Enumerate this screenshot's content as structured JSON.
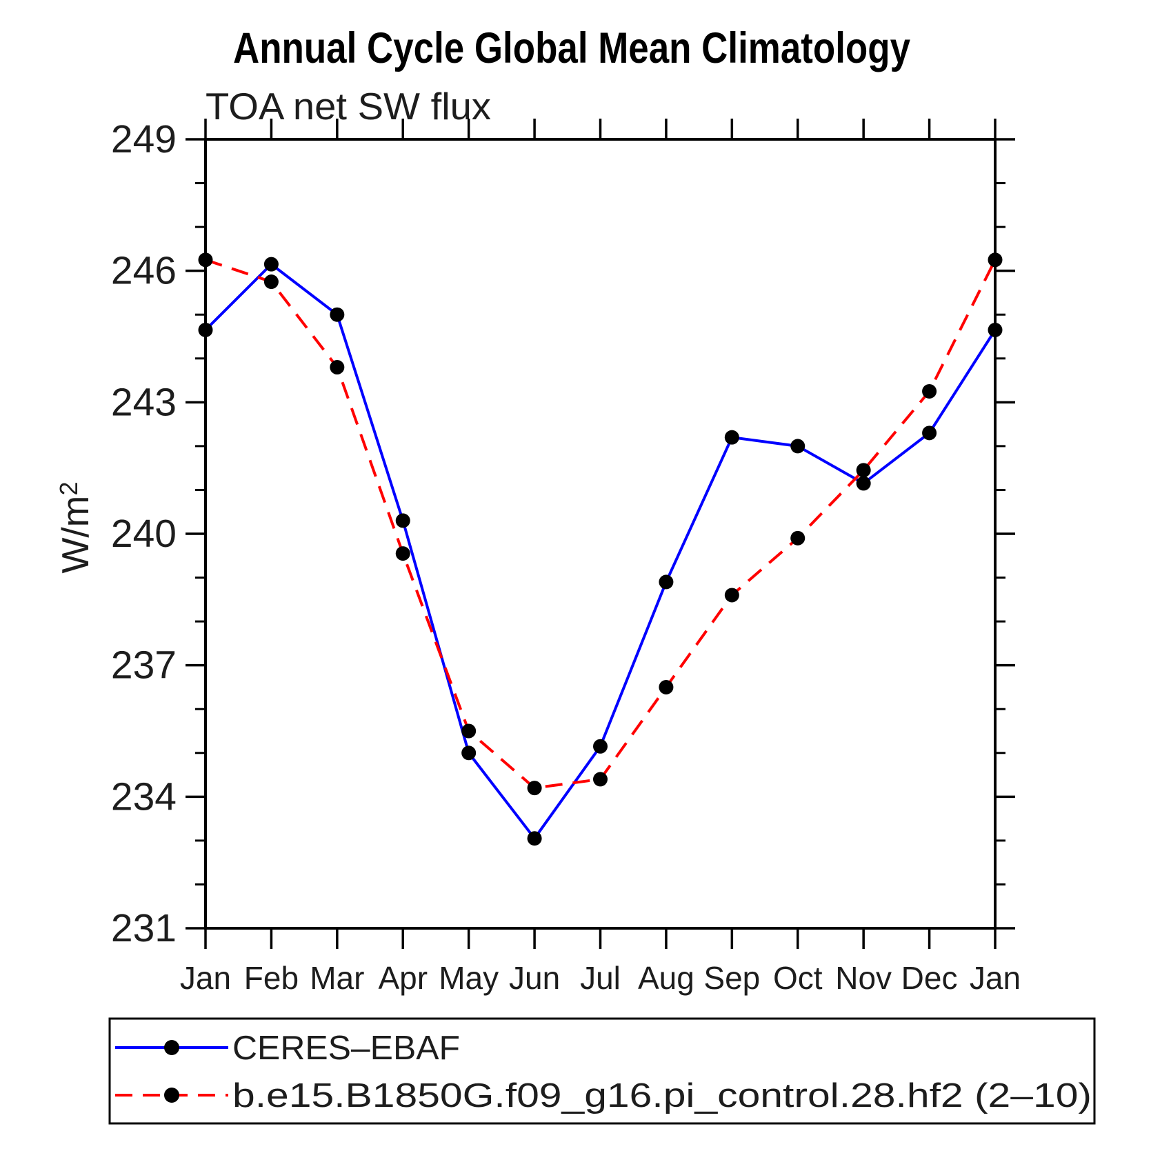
{
  "title": "Annual Cycle Global Mean Climatology",
  "subtitle": "TOA net SW flux",
  "ylabel": {
    "main": "W/m",
    "sup": "2"
  },
  "chart_data": {
    "type": "line",
    "title": "Annual Cycle Global Mean Climatology",
    "subtitle": "TOA net SW flux",
    "ylabel": "W/m2",
    "x_categories": [
      "Jan",
      "Feb",
      "Mar",
      "Apr",
      "May",
      "Jun",
      "Jul",
      "Aug",
      "Sep",
      "Oct",
      "Nov",
      "Dec",
      "Jan"
    ],
    "ylim": [
      231,
      249
    ],
    "ytick_major": [
      231,
      234,
      237,
      240,
      243,
      246,
      249
    ],
    "ytick_minor_step": 1,
    "grid": false,
    "legend_position": "bottom",
    "series": [
      {
        "name": "CERES–EBAF",
        "color": "#0000ff",
        "style": "solid",
        "marker": "circle",
        "marker_color": "#000000",
        "values": [
          244.65,
          246.15,
          245.0,
          240.3,
          235.0,
          233.05,
          235.15,
          238.9,
          242.2,
          242.0,
          241.15,
          242.3,
          244.65
        ]
      },
      {
        "name": "b.e15.B1850G.f09_g16.pi_control.28.hf2 (2–10)",
        "color": "#ff0000",
        "style": "dashed",
        "marker": "circle",
        "marker_color": "#000000",
        "values": [
          246.25,
          245.75,
          243.8,
          239.55,
          235.5,
          234.2,
          234.4,
          236.5,
          238.6,
          239.9,
          241.45,
          243.25,
          246.25
        ]
      }
    ]
  }
}
